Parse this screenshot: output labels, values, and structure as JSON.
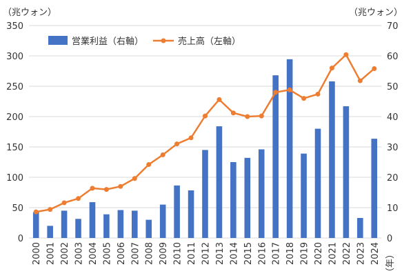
{
  "chart_data": {
    "type": "bar+line",
    "left_axis_unit": "（兆ウォン）",
    "right_axis_unit": "（兆ウォン）",
    "x_axis_unit": "（年）",
    "categories": [
      "2000",
      "2001",
      "2002",
      "2003",
      "2004",
      "2005",
      "2006",
      "2007",
      "2008",
      "2009",
      "2010",
      "2011",
      "2012",
      "2013",
      "2014",
      "2015",
      "2016",
      "2017",
      "2018",
      "2019",
      "2020",
      "2021",
      "2022",
      "2023",
      "2024"
    ],
    "left_ylim": [
      0,
      350
    ],
    "left_ticks": [
      "0",
      "50",
      "100",
      "150",
      "200",
      "250",
      "300",
      "350"
    ],
    "right_ylim": [
      0,
      70
    ],
    "right_ticks": [
      "0",
      "10",
      "20",
      "30",
      "40",
      "50",
      "60",
      "70"
    ],
    "grid": true,
    "legend_position": "top-left",
    "series": [
      {
        "name": "営業利益（右軸）",
        "type": "bar",
        "axis": "right",
        "color": "#4472c4",
        "values": [
          8.5,
          4.0,
          9.0,
          6.3,
          11.8,
          7.8,
          9.2,
          9.0,
          6.0,
          11.0,
          17.3,
          15.7,
          29.0,
          36.8,
          25.0,
          26.4,
          29.2,
          53.6,
          58.9,
          27.8,
          36.0,
          51.6,
          43.4,
          6.6,
          32.7
        ]
      },
      {
        "name": "売上高（左軸）",
        "type": "line",
        "axis": "left",
        "color": "#ed7d31",
        "values": [
          43,
          47,
          58,
          65,
          82,
          80,
          85,
          98,
          121,
          137,
          155,
          165,
          201,
          228,
          206,
          200,
          201,
          240,
          244,
          230,
          237,
          280,
          302,
          259,
          279
        ]
      }
    ]
  }
}
